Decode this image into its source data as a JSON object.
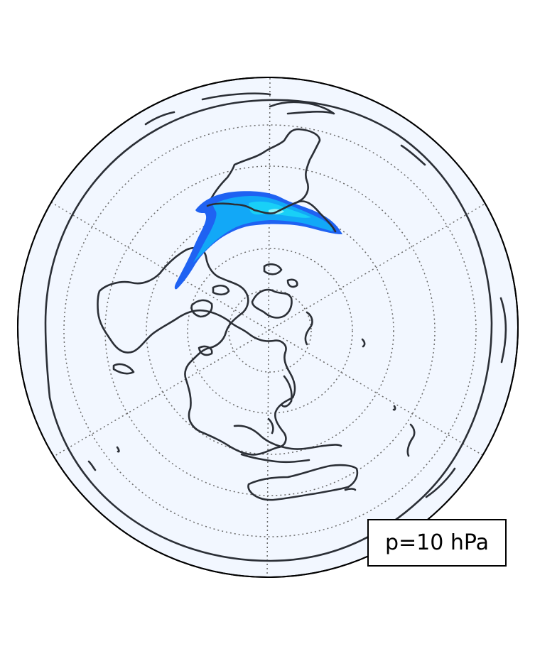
{
  "map": {
    "projection": "polar-azimuthal",
    "background_color": "#f2f7ff",
    "coastline_color": "#2b2f36",
    "contour_colors": [
      "#1f62f2",
      "#12a8f7",
      "#19d0f7",
      "#8ff2f7"
    ]
  },
  "annotation": {
    "pressure_label": "p=10 hPa"
  }
}
